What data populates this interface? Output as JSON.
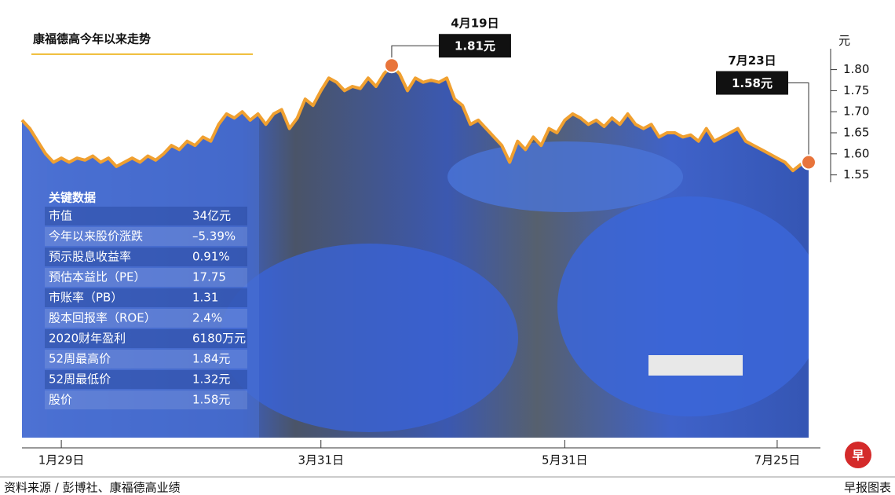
{
  "chart_data": {
    "type": "line",
    "title": "康福德高今年以来走势",
    "y_unit": "元",
    "categories": [
      null,
      null,
      null,
      null,
      null,
      "1月29日",
      null,
      null,
      null,
      null,
      null,
      null,
      null,
      null,
      null,
      null,
      null,
      null,
      null,
      null,
      null,
      null,
      null,
      null,
      null,
      null,
      null,
      null,
      null,
      null,
      null,
      null,
      null,
      null,
      null,
      null,
      null,
      null,
      "3月31日",
      null,
      null,
      null,
      null,
      null,
      null,
      null,
      null,
      "4月19日",
      null,
      null,
      null,
      null,
      null,
      null,
      null,
      null,
      null,
      null,
      null,
      null,
      null,
      null,
      null,
      null,
      null,
      null,
      null,
      null,
      null,
      "5月31日",
      null,
      null,
      null,
      null,
      null,
      null,
      null,
      null,
      null,
      null,
      null,
      null,
      null,
      null,
      null,
      null,
      null,
      null,
      null,
      null,
      null,
      null,
      null,
      null,
      null,
      null,
      "7月25日",
      null,
      null,
      null,
      "7月23日"
    ],
    "values": [
      1.68,
      1.66,
      1.63,
      1.6,
      1.58,
      1.59,
      1.58,
      1.59,
      1.585,
      1.595,
      1.58,
      1.59,
      1.57,
      1.58,
      1.59,
      1.58,
      1.595,
      1.585,
      1.6,
      1.62,
      1.61,
      1.63,
      1.62,
      1.64,
      1.63,
      1.67,
      1.695,
      1.685,
      1.7,
      1.68,
      1.695,
      1.67,
      1.695,
      1.705,
      1.66,
      1.685,
      1.73,
      1.715,
      1.75,
      1.78,
      1.77,
      1.75,
      1.76,
      1.755,
      1.78,
      1.76,
      1.79,
      1.81,
      1.79,
      1.75,
      1.78,
      1.77,
      1.775,
      1.77,
      1.78,
      1.73,
      1.715,
      1.67,
      1.68,
      1.66,
      1.64,
      1.62,
      1.58,
      1.63,
      1.61,
      1.64,
      1.62,
      1.66,
      1.65,
      1.68,
      1.695,
      1.685,
      1.67,
      1.68,
      1.665,
      1.685,
      1.67,
      1.695,
      1.67,
      1.66,
      1.67,
      1.64,
      1.65,
      1.65,
      1.64,
      1.645,
      1.63,
      1.66,
      1.63,
      1.64,
      1.65,
      1.66,
      1.63,
      1.62,
      1.61,
      1.6,
      1.59,
      1.58,
      1.56,
      1.575,
      1.58
    ],
    "value_labels": [
      null,
      null,
      null,
      null,
      null,
      null,
      null,
      null,
      null,
      null,
      null,
      null,
      null,
      null,
      null,
      null,
      null,
      null,
      null,
      null,
      null,
      null,
      null,
      null,
      null,
      null,
      null,
      null,
      null,
      null,
      null,
      null,
      null,
      null,
      null,
      null,
      null,
      null,
      null,
      null,
      null,
      null,
      null,
      null,
      null,
      null,
      null,
      "1.81元",
      null,
      null,
      null,
      null,
      null,
      null,
      null,
      null,
      null,
      null,
      null,
      null,
      null,
      null,
      null,
      null,
      null,
      null,
      null,
      null,
      null,
      null,
      null,
      null,
      null,
      null,
      null,
      null,
      null,
      null,
      null,
      null,
      null,
      null,
      null,
      null,
      null,
      null,
      null,
      null,
      null,
      null,
      null,
      null,
      null,
      null,
      null,
      null,
      null,
      null,
      null,
      null,
      "1.58元"
    ],
    "color": "#f0a030",
    "ylim": [
      0.9,
      1.9
    ],
    "yticks": [
      {
        "value": 1.8,
        "label": "1.80"
      },
      1.75,
      {
        "value": 1.7,
        "label": "1.70"
      },
      1.65,
      {
        "value": 1.6,
        "label": "1.60"
      },
      1.55
    ],
    "grid": false
  },
  "key_data": {
    "title": "关键数据",
    "rows": [
      [
        "市值",
        "34亿元"
      ],
      [
        "今年以来股价涨跌",
        "–5.39%"
      ],
      [
        "预示股息收益率",
        "0.91%"
      ],
      [
        "预估本益比（PE）",
        "17.75"
      ],
      [
        "市账率（PB）",
        "1.31"
      ],
      [
        "股本回报率（ROE）",
        "2.4%"
      ],
      [
        "2020财年盈利",
        "6180万元"
      ],
      [
        "52周最高价",
        "1.84元"
      ],
      [
        "52周最低价",
        "1.32元"
      ],
      [
        "股价",
        "1.58元"
      ]
    ]
  },
  "footer": {
    "source": "资料来源 / 彭博社、康福德高业绩",
    "credit": "早报图表",
    "logo": "早"
  }
}
